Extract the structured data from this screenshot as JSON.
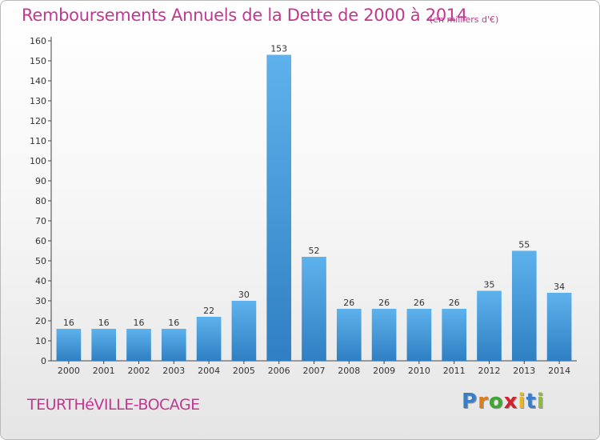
{
  "header": {
    "title": "Remboursements Annuels de la Dette de 2000 à 2014",
    "unit": "(en milliers d'€)"
  },
  "footer": {
    "commune": "TEURTHéVILLE-BOCAGE",
    "logo_letters": [
      "P",
      "r",
      "o",
      "x",
      "i",
      "t",
      "i"
    ],
    "logo_colors": [
      "#3b7ec8",
      "#e07b1a",
      "#3fa535",
      "#d3202e",
      "#e8b51a",
      "#3b7ec8",
      "#8cbd3f"
    ]
  },
  "colors": {
    "title": "#c0388f",
    "bar_top": "#5eb2ec",
    "bar_bottom": "#2f7fc2"
  },
  "chart_data": {
    "type": "bar",
    "categories": [
      "2000",
      "2001",
      "2002",
      "2003",
      "2004",
      "2005",
      "2006",
      "2007",
      "2008",
      "2009",
      "2010",
      "2011",
      "2012",
      "2013",
      "2014"
    ],
    "values": [
      16,
      16,
      16,
      16,
      22,
      30,
      153,
      52,
      26,
      26,
      26,
      26,
      35,
      55,
      34
    ],
    "data_labels": [
      "16",
      "16",
      "16",
      "16",
      "22",
      "30",
      "153",
      "52",
      "26",
      "26",
      "26",
      "26",
      "35",
      "55",
      "34"
    ],
    "ylim": [
      0,
      160
    ],
    "yticks": [
      0,
      10,
      20,
      30,
      40,
      50,
      60,
      70,
      80,
      90,
      100,
      110,
      120,
      130,
      140,
      150,
      160
    ],
    "grid": false,
    "legend": "none"
  }
}
